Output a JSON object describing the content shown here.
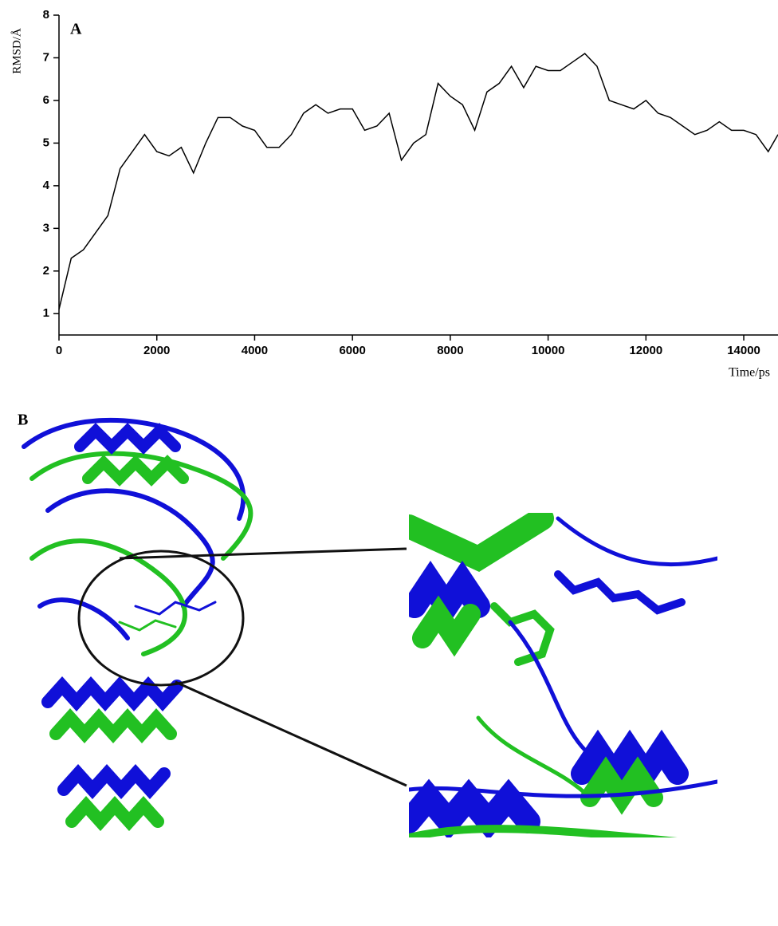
{
  "panel_a_label": "A",
  "panel_b_label": "B",
  "chart_data": {
    "type": "line",
    "ylabel": "RMSD/Å",
    "xlabel": "Time/ps",
    "x": [
      0,
      250,
      500,
      750,
      1000,
      1250,
      1500,
      1750,
      2000,
      2250,
      2500,
      2750,
      3000,
      3250,
      3500,
      3750,
      4000,
      4250,
      4500,
      4750,
      5000,
      5250,
      5500,
      5750,
      6000,
      6250,
      6500,
      6750,
      7000,
      7250,
      7500,
      7750,
      8000,
      8250,
      8500,
      8750,
      9000,
      9250,
      9500,
      9750,
      10000,
      10250,
      10500,
      10750,
      11000,
      11250,
      11500,
      11750,
      12000,
      12250,
      12500,
      12750,
      13000,
      13250,
      13500,
      13750,
      14000,
      14250,
      14500,
      14700
    ],
    "series": [
      {
        "color": "#000000",
        "values": [
          1.1,
          2.3,
          2.5,
          2.9,
          3.3,
          4.4,
          4.8,
          5.2,
          4.8,
          4.7,
          4.9,
          4.3,
          5.0,
          5.6,
          5.6,
          5.4,
          5.3,
          4.9,
          4.9,
          5.2,
          5.7,
          5.9,
          5.7,
          5.8,
          5.8,
          5.3,
          5.4,
          5.7,
          4.6,
          5.0,
          5.2,
          6.4,
          6.1,
          5.9,
          5.3,
          6.2,
          6.4,
          6.8,
          6.3,
          6.8,
          6.7,
          6.7,
          6.9,
          7.1,
          6.8,
          6.0,
          5.9,
          5.8,
          6.0,
          5.7,
          5.6,
          5.4,
          5.2,
          5.3,
          5.5,
          5.3,
          5.3,
          5.2,
          4.8,
          5.2
        ]
      }
    ],
    "xlim": [
      0,
      14700
    ],
    "ylim": [
      0.5,
      8
    ],
    "xticks": [
      0,
      2000,
      4000,
      6000,
      8000,
      10000,
      12000,
      14000
    ],
    "yticks": [
      1,
      2,
      3,
      4,
      5,
      6,
      7,
      8
    ]
  }
}
